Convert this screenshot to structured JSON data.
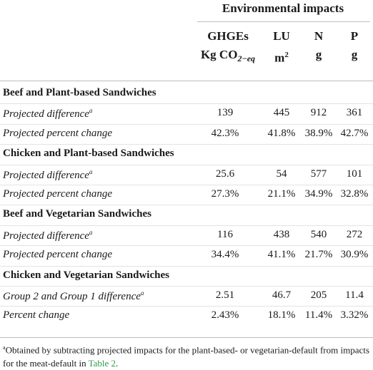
{
  "header": {
    "group_title": "Environmental impacts",
    "columns": [
      {
        "line1": "GHGEs",
        "line2_main": "Kg CO",
        "line2_sub": "2−eq"
      },
      {
        "line1": "LU",
        "line2_main": "m",
        "line2_sup": "2"
      },
      {
        "line1": "N",
        "line2_main": "g"
      },
      {
        "line1": "P",
        "line2_main": "g"
      }
    ]
  },
  "rows": [
    {
      "type": "section",
      "label": "Beef and Plant-based Sandwiches"
    },
    {
      "type": "item",
      "label": "Projected difference",
      "mark": "a",
      "values": [
        "139",
        "445",
        "912",
        "361"
      ]
    },
    {
      "type": "item",
      "label": "Projected percent change",
      "mark": "",
      "values": [
        "42.3%",
        "41.8%",
        "38.9%",
        "42.7%"
      ]
    },
    {
      "type": "section",
      "label": "Chicken and Plant-based Sandwiches"
    },
    {
      "type": "item",
      "label": "Projected difference",
      "mark": "a",
      "values": [
        "25.6",
        "54",
        "577",
        "101"
      ]
    },
    {
      "type": "item",
      "label": "Projected percent change",
      "mark": "",
      "values": [
        "27.3%",
        "21.1%",
        "34.9%",
        "32.8%"
      ]
    },
    {
      "type": "section",
      "label": "Beef and Vegetarian Sandwiches"
    },
    {
      "type": "item",
      "label": "Projected difference",
      "mark": "a",
      "values": [
        "116",
        "438",
        "540",
        "272"
      ]
    },
    {
      "type": "item",
      "label": "Projected percent change",
      "mark": "",
      "values": [
        "34.4%",
        "41.1%",
        "21.7%",
        "30.9%"
      ]
    },
    {
      "type": "section",
      "label": "Chicken and Vegetarian Sandwiches"
    },
    {
      "type": "item",
      "label": "Group 2 and Group 1 difference",
      "mark": "a",
      "values": [
        "2.51",
        "46.7",
        "205",
        "11.4"
      ]
    },
    {
      "type": "item",
      "label": "Percent change",
      "mark": "",
      "values": [
        "2.43%",
        "18.1%",
        "11.4%",
        "3.32%"
      ]
    }
  ],
  "footnote": {
    "mark": "a",
    "text": "Obtained by subtracting projected impacts for the plant-based- or vegetarian-default from impacts for the meat-default in ",
    "link": "Table 2",
    "end": "."
  },
  "colors": {
    "link": "#2e9a48",
    "rule": "#bdbdbd"
  }
}
